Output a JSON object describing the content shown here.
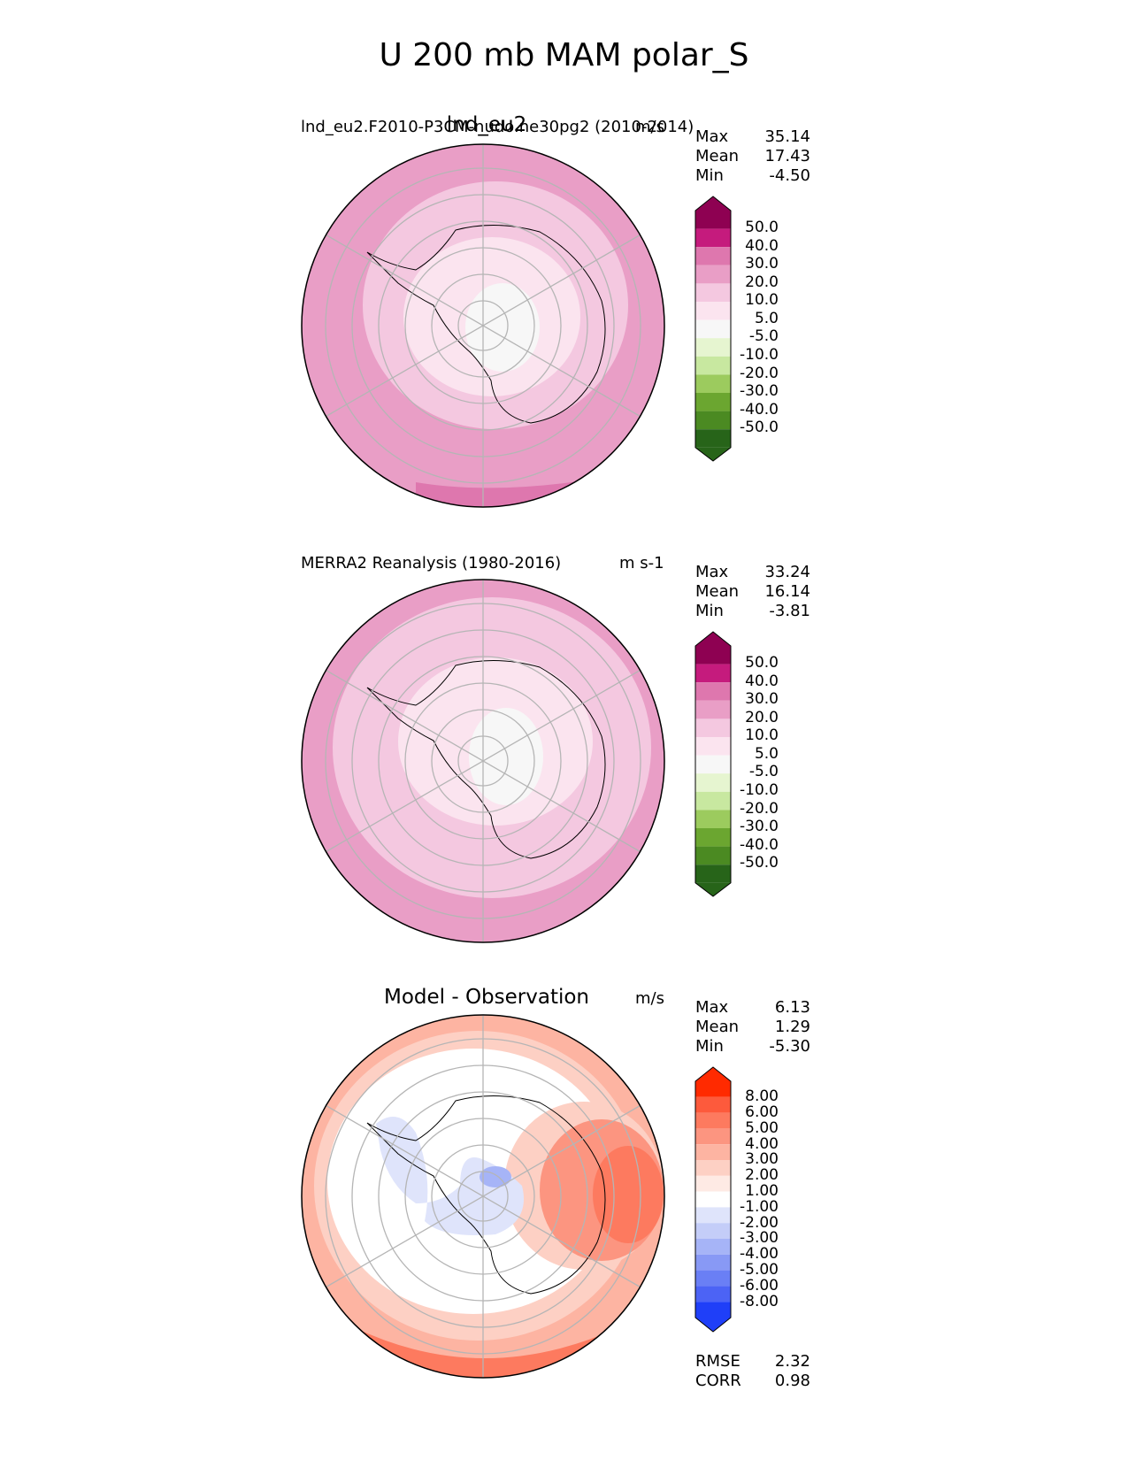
{
  "figure": {
    "title": "U 200 mb MAM polar_S"
  },
  "panels": [
    {
      "id": "test",
      "title": "lnd_eu2",
      "subtitle": "lnd_eu2.F2010-P3CM-nudo.ne30pg2 (2010-2014)",
      "units": "m/s",
      "stats": [
        {
          "label": "Max",
          "value": "35.14"
        },
        {
          "label": "Mean",
          "value": "17.43"
        },
        {
          "label": "Min",
          "value": "-4.50"
        }
      ],
      "colorbar": {
        "labels": [
          "50.0",
          "40.0",
          "30.0",
          "20.0",
          "10.0",
          "5.0",
          "-5.0",
          "-10.0",
          "-20.0",
          "-30.0",
          "-40.0",
          "-50.0"
        ],
        "colors": [
          "#8e0152",
          "#c51b7d",
          "#de77ae",
          "#e99ec6",
          "#f4c8e0",
          "#fbe4ef",
          "#f7f7f7",
          "#e6f5d0",
          "#c8e8a0",
          "#9ccb5e",
          "#6ba630",
          "#4b8a22",
          "#276419"
        ]
      }
    },
    {
      "id": "ref",
      "title": "",
      "subtitle": "MERRA2 Reanalysis (1980-2016)",
      "units": "m s-1",
      "stats": [
        {
          "label": "Max",
          "value": "33.24"
        },
        {
          "label": "Mean",
          "value": "16.14"
        },
        {
          "label": "Min",
          "value": "-3.81"
        }
      ],
      "colorbar": {
        "labels": [
          "50.0",
          "40.0",
          "30.0",
          "20.0",
          "10.0",
          "5.0",
          "-5.0",
          "-10.0",
          "-20.0",
          "-30.0",
          "-40.0",
          "-50.0"
        ],
        "colors": [
          "#8e0152",
          "#c51b7d",
          "#de77ae",
          "#e99ec6",
          "#f4c8e0",
          "#fbe4ef",
          "#f7f7f7",
          "#e6f5d0",
          "#c8e8a0",
          "#9ccb5e",
          "#6ba630",
          "#4b8a22",
          "#276419"
        ]
      }
    },
    {
      "id": "diff",
      "title": "Model - Observation",
      "subtitle": "",
      "units": "m/s",
      "stats": [
        {
          "label": "Max",
          "value": "6.13"
        },
        {
          "label": "Mean",
          "value": "1.29"
        },
        {
          "label": "Min",
          "value": "-5.30"
        }
      ],
      "metrics": [
        {
          "label": "RMSE",
          "value": "2.32"
        },
        {
          "label": "CORR",
          "value": "0.98"
        }
      ],
      "colorbar": {
        "labels": [
          "8.00",
          "6.00",
          "5.00",
          "4.00",
          "3.00",
          "2.00",
          "1.00",
          "-1.00",
          "-2.00",
          "-3.00",
          "-4.00",
          "-5.00",
          "-6.00",
          "-8.00"
        ],
        "colors": [
          "#ff2a00",
          "#fd5a3c",
          "#fd7a5f",
          "#fc9580",
          "#fdb4a2",
          "#fdd0c4",
          "#feeae4",
          "#ffffff",
          "#dfe4fb",
          "#c4cdf8",
          "#a6b4f7",
          "#8899f5",
          "#6a7ff5",
          "#4c63f5",
          "#1f3ff8"
        ]
      }
    }
  ]
}
